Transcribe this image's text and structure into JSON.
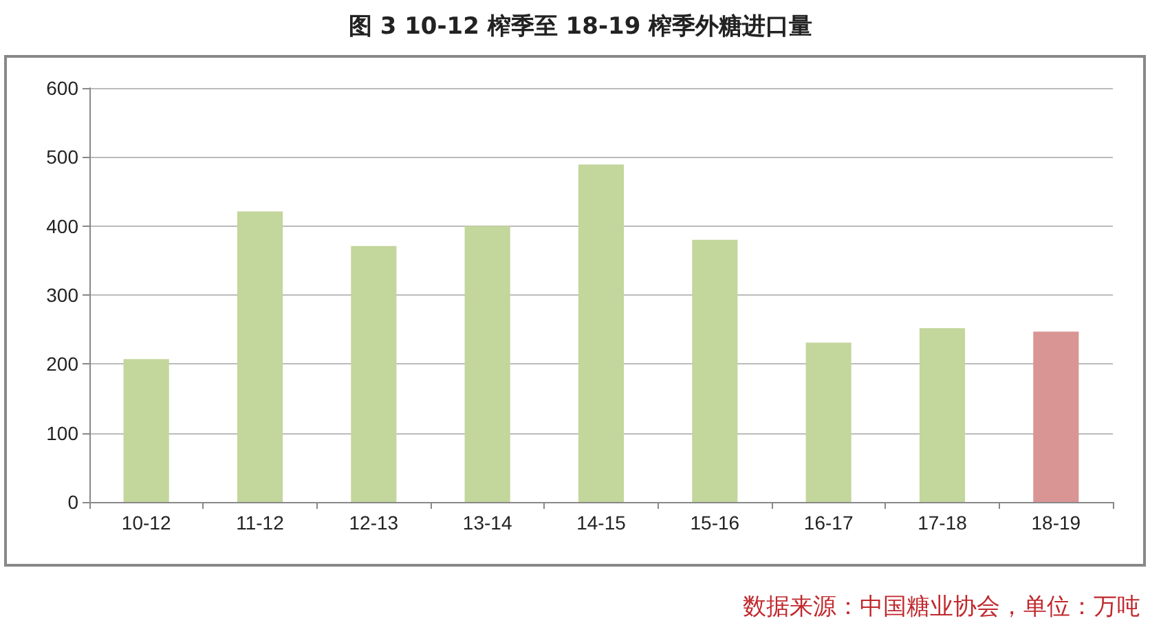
{
  "chart_data": {
    "type": "bar",
    "title": "图 3 10-12 榨季至 18-19 榨季外糖进口量",
    "categories": [
      "10-12",
      "11-12",
      "12-13",
      "13-14",
      "14-15",
      "15-16",
      "16-17",
      "17-18",
      "18-19"
    ],
    "values": [
      207,
      421,
      371,
      400,
      489,
      380,
      231,
      252,
      247
    ],
    "colors": [
      "#c3d69b",
      "#c3d69b",
      "#c3d69b",
      "#c3d69b",
      "#c3d69b",
      "#c3d69b",
      "#c3d69b",
      "#c3d69b",
      "#d99594"
    ],
    "ylim": [
      0,
      600
    ],
    "yticks": [
      0,
      100,
      200,
      300,
      400,
      500,
      600
    ],
    "grid": "y",
    "annotations": [
      "数据来源：中国糖业协会，单位：万吨"
    ]
  }
}
